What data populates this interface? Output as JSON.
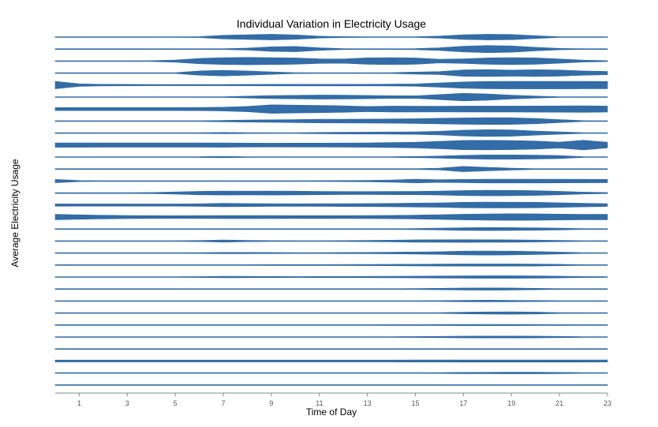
{
  "chart_data": {
    "type": "area",
    "subtype": "ridgeline",
    "title": "Individual Variation in Electricity Usage",
    "xlabel": "Time of Day",
    "ylabel": "Average Electricity Usage",
    "x": [
      0,
      1,
      2,
      3,
      4,
      5,
      6,
      7,
      8,
      9,
      10,
      11,
      12,
      13,
      14,
      15,
      16,
      17,
      18,
      19,
      20,
      21,
      22,
      23
    ],
    "xticks": [
      1,
      3,
      5,
      7,
      9,
      11,
      13,
      15,
      17,
      19,
      21,
      23
    ],
    "xlim": [
      0,
      23
    ],
    "grid": false,
    "legend": "none",
    "color": "#336ca6",
    "series": [
      {
        "values": [
          0.1,
          0.1,
          0.1,
          0.1,
          0.1,
          0.1,
          0.6,
          2.2,
          2.9,
          3.4,
          2.7,
          1.1,
          0.6,
          0.4,
          0.3,
          0.3,
          1.2,
          2.9,
          3.4,
          3.1,
          1.7,
          0.5,
          0.2,
          0.1
        ]
      },
      {
        "values": [
          0.1,
          0.1,
          0.1,
          0.1,
          0.1,
          0.1,
          0.2,
          0.5,
          1.2,
          2.8,
          3.2,
          1.5,
          0.6,
          0.4,
          0.5,
          0.7,
          1.6,
          3.4,
          4.3,
          3.8,
          2.2,
          0.9,
          0.3,
          0.1
        ]
      },
      {
        "values": [
          0.5,
          0.5,
          0.5,
          0.5,
          0.6,
          1.3,
          3.2,
          4.1,
          4.5,
          4.2,
          3.8,
          2.8,
          2.6,
          3.9,
          4.2,
          3.8,
          2.2,
          2.8,
          3.8,
          4.2,
          3.9,
          2.6,
          1.1,
          0.6
        ]
      },
      {
        "values": [
          0.5,
          0.5,
          0.5,
          0.5,
          0.5,
          0.5,
          2.6,
          3.4,
          2.6,
          1.5,
          0.6,
          0.5,
          0.5,
          0.5,
          0.6,
          1.2,
          1.8,
          3.9,
          4.2,
          3.6,
          4.1,
          3.7,
          2.6,
          2.0
        ]
      },
      {
        "values": [
          4.5,
          1.5,
          1.0,
          0.9,
          0.8,
          0.8,
          0.8,
          0.8,
          0.9,
          1.0,
          1.0,
          1.0,
          1.0,
          1.0,
          1.1,
          1.4,
          2.6,
          3.8,
          4.4,
          4.6,
          4.6,
          4.6,
          4.5,
          4.4
        ]
      },
      {
        "values": [
          0.1,
          0.1,
          0.1,
          0.1,
          0.1,
          0.1,
          0.2,
          0.5,
          1.1,
          1.8,
          2.1,
          2.5,
          2.3,
          2.0,
          1.6,
          1.5,
          3.0,
          4.6,
          3.8,
          2.3,
          1.2,
          0.5,
          0.2,
          0.1
        ]
      },
      {
        "values": [
          1.8,
          1.8,
          1.8,
          1.8,
          1.8,
          1.8,
          1.9,
          2.3,
          3.2,
          5.1,
          4.8,
          4.4,
          3.9,
          3.1,
          3.6,
          3.5,
          3.4,
          3.6,
          3.6,
          3.6,
          3.7,
          3.8,
          3.9,
          3.6
        ]
      },
      {
        "values": [
          0.2,
          0.2,
          0.2,
          0.2,
          0.2,
          0.3,
          0.5,
          0.9,
          1.2,
          1.5,
          1.8,
          2.2,
          2.3,
          2.4,
          2.6,
          2.9,
          3.4,
          3.8,
          4.1,
          4.0,
          3.2,
          1.8,
          0.6,
          0.2
        ]
      },
      {
        "values": [
          0.1,
          0.1,
          0.1,
          0.1,
          0.1,
          0.1,
          0.3,
          0.8,
          0.6,
          0.4,
          0.5,
          0.8,
          1.0,
          1.1,
          1.3,
          1.5,
          2.2,
          3.5,
          4.1,
          3.8,
          2.5,
          1.4,
          0.4,
          0.1
        ]
      },
      {
        "values": [
          2.7,
          2.7,
          2.6,
          2.6,
          2.6,
          2.6,
          2.6,
          2.7,
          2.4,
          2.3,
          2.4,
          2.4,
          2.5,
          2.7,
          3.0,
          3.4,
          4.5,
          5.6,
          5.7,
          5.5,
          4.9,
          3.6,
          5.8,
          3.4
        ]
      },
      {
        "values": [
          0.1,
          0.1,
          0.1,
          0.1,
          0.1,
          0.1,
          0.1,
          0.8,
          0.3,
          0.2,
          0.2,
          0.2,
          0.2,
          0.3,
          0.5,
          0.7,
          1.2,
          2.1,
          2.6,
          2.6,
          2.4,
          1.8,
          0.5,
          0.1
        ]
      },
      {
        "values": [
          0.0,
          0.0,
          0.0,
          0.0,
          0.0,
          0.0,
          0.0,
          0.2,
          0.2,
          0.2,
          0.2,
          0.1,
          0.1,
          0.1,
          0.2,
          0.3,
          1.0,
          3.2,
          2.1,
          1.1,
          0.4,
          0.1,
          0.0,
          0.0
        ]
      },
      {
        "values": [
          2.0,
          0.7,
          0.3,
          0.2,
          0.2,
          0.2,
          0.2,
          0.2,
          0.3,
          0.4,
          0.5,
          0.6,
          0.7,
          0.9,
          1.3,
          2.2,
          1.6,
          2.0,
          2.3,
          2.3,
          2.3,
          2.2,
          2.1,
          2.0
        ]
      },
      {
        "values": [
          0.6,
          0.6,
          0.6,
          0.6,
          0.7,
          1.3,
          2.1,
          2.4,
          2.3,
          2.4,
          2.3,
          2.0,
          1.8,
          1.8,
          1.9,
          2.0,
          2.4,
          3.0,
          3.3,
          3.2,
          2.9,
          2.1,
          1.1,
          0.7
        ]
      },
      {
        "values": [
          1.4,
          1.3,
          1.3,
          1.3,
          1.3,
          1.3,
          1.5,
          2.1,
          1.8,
          1.6,
          1.5,
          1.6,
          1.7,
          1.8,
          2.0,
          2.4,
          2.7,
          3.3,
          3.5,
          3.4,
          3.3,
          2.8,
          2.2,
          1.6
        ]
      },
      {
        "values": [
          3.2,
          2.7,
          2.2,
          1.8,
          1.7,
          1.6,
          1.7,
          1.9,
          1.9,
          1.8,
          1.7,
          1.7,
          1.7,
          1.8,
          2.0,
          2.4,
          2.8,
          3.4,
          3.8,
          4.0,
          3.9,
          3.5,
          3.2,
          3.3
        ]
      },
      {
        "values": [
          0.1,
          0.1,
          0.1,
          0.1,
          0.1,
          0.2,
          0.3,
          0.4,
          0.4,
          0.4,
          0.3,
          0.3,
          0.3,
          0.4,
          0.5,
          0.7,
          1.0,
          1.6,
          1.8,
          1.7,
          1.4,
          1.0,
          0.3,
          0.1
        ]
      },
      {
        "values": [
          0.2,
          0.2,
          0.2,
          0.2,
          0.2,
          0.3,
          0.7,
          1.3,
          0.8,
          0.6,
          0.5,
          0.5,
          0.6,
          0.8,
          1.0,
          1.4,
          1.5,
          1.6,
          1.5,
          1.4,
          1.1,
          0.8,
          0.3,
          0.2
        ]
      },
      {
        "values": [
          0.2,
          0.2,
          0.2,
          0.2,
          0.2,
          0.3,
          0.6,
          0.8,
          0.8,
          0.7,
          0.6,
          0.6,
          0.7,
          0.8,
          1.0,
          1.2,
          1.6,
          2.3,
          2.5,
          2.3,
          1.8,
          1.1,
          0.4,
          0.2
        ]
      },
      {
        "values": [
          0.1,
          0.1,
          0.1,
          0.1,
          0.1,
          0.2,
          0.3,
          0.5,
          0.5,
          0.6,
          0.6,
          0.6,
          0.7,
          0.8,
          0.9,
          1.0,
          1.2,
          1.3,
          1.3,
          1.3,
          1.2,
          0.9,
          0.3,
          0.1
        ]
      },
      {
        "values": [
          0.3,
          0.3,
          0.3,
          0.3,
          0.3,
          0.4,
          0.6,
          0.9,
          0.8,
          0.7,
          0.6,
          0.7,
          0.7,
          0.8,
          0.9,
          1.0,
          1.2,
          1.4,
          1.5,
          1.5,
          1.3,
          1.0,
          0.6,
          0.3
        ]
      },
      {
        "values": [
          0.1,
          0.1,
          0.1,
          0.1,
          0.1,
          0.1,
          0.2,
          0.3,
          0.3,
          0.3,
          0.3,
          0.3,
          0.3,
          0.4,
          0.5,
          0.6,
          0.9,
          1.2,
          1.3,
          1.2,
          0.9,
          0.5,
          0.2,
          0.1
        ]
      },
      {
        "values": [
          0.0,
          0.0,
          0.0,
          0.0,
          0.0,
          0.1,
          0.1,
          0.2,
          0.2,
          0.2,
          0.2,
          0.2,
          0.2,
          0.2,
          0.3,
          0.4,
          0.6,
          0.9,
          1.0,
          0.9,
          0.7,
          0.4,
          0.1,
          0.0
        ]
      },
      {
        "values": [
          0.0,
          0.0,
          0.0,
          0.0,
          0.0,
          0.0,
          0.1,
          0.1,
          0.1,
          0.1,
          0.1,
          0.1,
          0.1,
          0.1,
          0.2,
          0.3,
          0.5,
          1.0,
          1.3,
          1.4,
          1.1,
          0.6,
          0.2,
          0.0
        ]
      },
      {
        "values": [
          0.2,
          0.2,
          0.2,
          0.2,
          0.2,
          0.2,
          0.3,
          0.4,
          0.4,
          0.4,
          0.4,
          0.4,
          0.4,
          0.5,
          0.6,
          0.6,
          0.7,
          0.8,
          0.8,
          0.8,
          0.7,
          0.6,
          0.4,
          0.2
        ]
      },
      {
        "values": [
          0.1,
          0.1,
          0.1,
          0.1,
          0.1,
          0.2,
          0.3,
          0.4,
          0.4,
          0.4,
          0.4,
          0.4,
          0.4,
          0.5,
          0.5,
          0.6,
          0.8,
          1.0,
          1.1,
          1.1,
          1.0,
          0.8,
          0.4,
          0.1
        ]
      },
      {
        "values": [
          0.0,
          0.0,
          0.0,
          0.0,
          0.0,
          0.0,
          0.0,
          0.0,
          0.0,
          0.0,
          0.0,
          0.0,
          0.0,
          0.0,
          0.1,
          0.1,
          0.2,
          0.3,
          0.4,
          0.4,
          0.4,
          0.3,
          0.1,
          0.0
        ]
      },
      {
        "values": [
          1.1,
          1.1,
          1.1,
          1.1,
          1.1,
          1.1,
          1.1,
          1.1,
          1.1,
          1.1,
          1.1,
          1.1,
          1.1,
          1.1,
          1.1,
          1.2,
          1.2,
          1.3,
          1.3,
          1.3,
          1.3,
          1.3,
          1.3,
          1.2
        ]
      },
      {
        "values": [
          0.2,
          0.3,
          0.4,
          0.5,
          0.4,
          0.3,
          0.3,
          0.3,
          0.3,
          0.3,
          0.3,
          0.3,
          0.3,
          0.3,
          0.3,
          0.4,
          0.6,
          0.8,
          0.9,
          1.0,
          1.0,
          0.8,
          0.5,
          0.2
        ]
      },
      {
        "values": [
          0.1,
          0.1,
          0.1,
          0.1,
          0.1,
          0.1,
          0.2,
          0.2,
          0.2,
          0.2,
          0.2,
          0.2,
          0.2,
          0.2,
          0.2,
          0.3,
          0.4,
          0.5,
          0.5,
          0.5,
          0.5,
          0.4,
          0.2,
          0.1
        ]
      }
    ]
  }
}
